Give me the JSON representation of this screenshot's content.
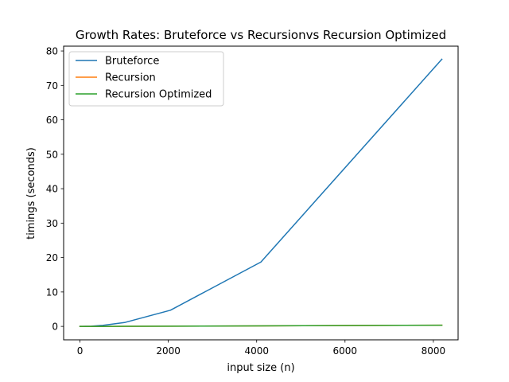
{
  "chart_data": {
    "type": "line",
    "title": "Growth Rates: Bruteforce vs Recursionvs Recursion Optimized",
    "xlabel": "input size (n)",
    "ylabel": "timings (seconds)",
    "xlim": [
      -370,
      8560
    ],
    "ylim": [
      -3.9,
      81.4
    ],
    "xticks": [
      0,
      2000,
      4000,
      6000,
      8000
    ],
    "yticks": [
      0,
      10,
      20,
      30,
      40,
      50,
      60,
      70,
      80
    ],
    "xtick_labels": [
      "0",
      "2000",
      "4000",
      "6000",
      "8000"
    ],
    "ytick_labels": [
      "0",
      "10",
      "20",
      "30",
      "40",
      "50",
      "60",
      "70",
      "80"
    ],
    "grid": false,
    "legend_position": "upper-left",
    "series": [
      {
        "name": "Bruteforce",
        "color": "#1f77b4",
        "x": [
          1,
          2,
          4,
          8,
          16,
          32,
          64,
          128,
          256,
          512,
          1024,
          2048,
          4096,
          8192
        ],
        "y": [
          0.0,
          0.0,
          0.0,
          0.0,
          0.0,
          0.0,
          0.01,
          0.02,
          0.07,
          0.29,
          1.17,
          4.7,
          18.7,
          77.6
        ]
      },
      {
        "name": "Recursion",
        "color": "#ff7f0e",
        "x": [
          1,
          2,
          4,
          8,
          16,
          32,
          64,
          128,
          256,
          512,
          1024,
          2048,
          4096,
          8192
        ],
        "y": [
          0.0,
          0.0,
          0.0,
          0.0,
          0.0,
          0.0,
          0.0,
          0.0,
          0.0,
          0.01,
          0.03,
          0.07,
          0.15,
          0.35
        ]
      },
      {
        "name": "Recursion Optimized",
        "color": "#2ca02c",
        "x": [
          1,
          2,
          4,
          8,
          16,
          32,
          64,
          128,
          256,
          512,
          1024,
          2048,
          4096,
          8192
        ],
        "y": [
          0.0,
          0.0,
          0.0,
          0.0,
          0.0,
          0.0,
          0.0,
          0.0,
          0.0,
          0.01,
          0.03,
          0.07,
          0.15,
          0.35
        ]
      }
    ]
  }
}
